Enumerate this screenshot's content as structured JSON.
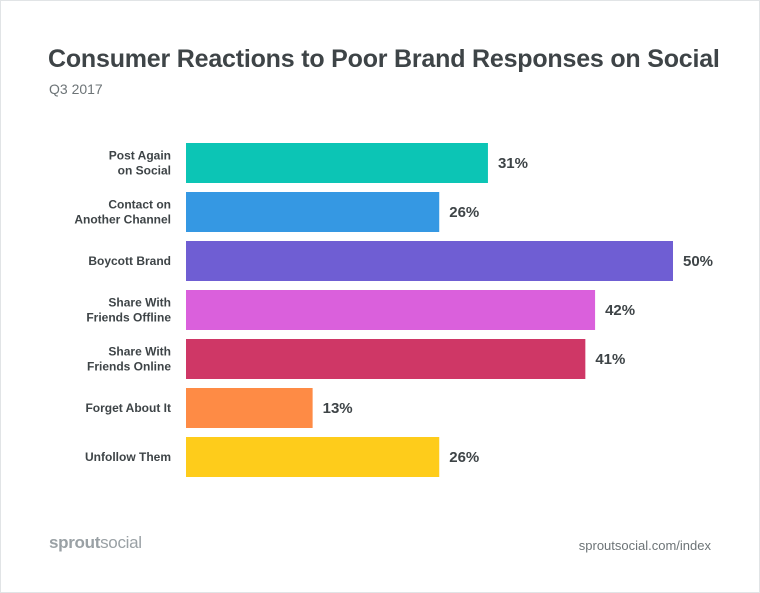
{
  "header": {
    "title": "Consumer Reactions to Poor Brand Responses on Social",
    "subtitle": "Q3 2017"
  },
  "footer": {
    "logo_strong": "sprout",
    "logo_light": "social",
    "url": "sproutsocial.com/index"
  },
  "chart_data": {
    "type": "bar",
    "orientation": "horizontal",
    "categories": [
      [
        "Post Again",
        "on Social"
      ],
      [
        "Contact on",
        "Another Channel"
      ],
      [
        "Boycott Brand"
      ],
      [
        "Share With",
        "Friends Offline"
      ],
      [
        "Share With",
        "Friends Online"
      ],
      [
        "Forget About It"
      ],
      [
        "Unfollow Them"
      ]
    ],
    "values": [
      31,
      26,
      50,
      42,
      41,
      13,
      26
    ],
    "value_labels": [
      "31%",
      "26%",
      "50%",
      "42%",
      "41%",
      "13%",
      "26%"
    ],
    "colors": [
      "#0cc5b5",
      "#3598e3",
      "#6f5ed3",
      "#da60dc",
      "#cf3766",
      "#fe8b45",
      "#fecc1b"
    ],
    "xlim": [
      0,
      50
    ],
    "grid": false,
    "legend": "none"
  }
}
